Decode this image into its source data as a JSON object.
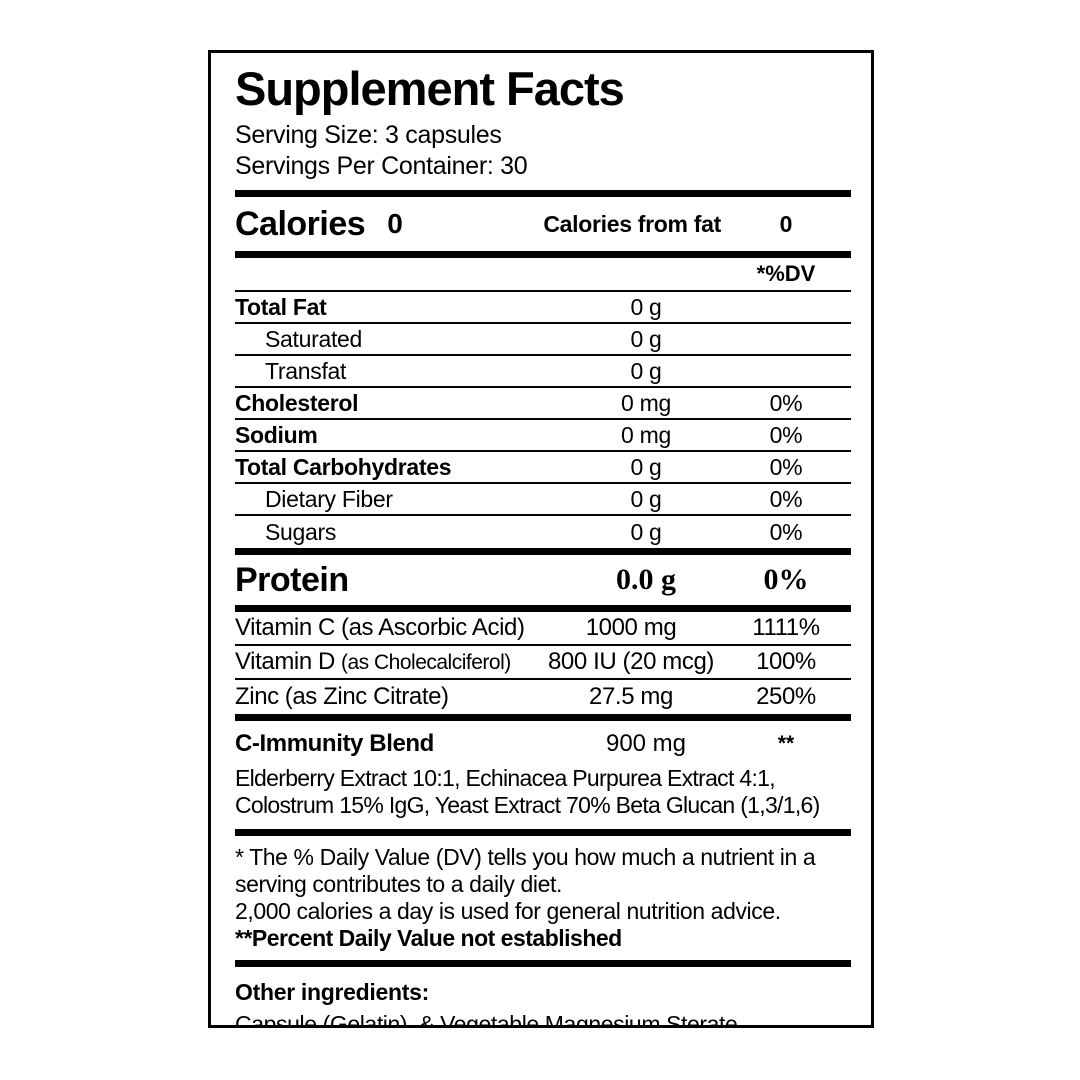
{
  "label": {
    "title": "Supplement Facts",
    "serving_size": "Serving Size: 3 capsules",
    "servings_per_container": "Servings Per Container: 30",
    "calories_label": "Calories",
    "calories_value": "0",
    "calories_from_fat_label": "Calories from fat",
    "calories_from_fat_value": "0",
    "dv_header": "*%DV",
    "nutrients": [
      {
        "name": "Total Fat",
        "amount": "0 g",
        "dv": ""
      },
      {
        "name": "Saturated",
        "amount": "0 g",
        "dv": ""
      },
      {
        "name": "Transfat",
        "amount": "0 g",
        "dv": ""
      },
      {
        "name": "Cholesterol",
        "amount": "0 mg",
        "dv": "0%"
      },
      {
        "name": "Sodium",
        "amount": "0 mg",
        "dv": "0%"
      },
      {
        "name": "Total Carbohydrates",
        "amount": "0 g",
        "dv": "0%"
      },
      {
        "name": "Dietary Fiber",
        "amount": "0 g",
        "dv": "0%"
      },
      {
        "name": "Sugars",
        "amount": "0 g",
        "dv": "0%"
      }
    ],
    "protein_label": "Protein",
    "protein_amount": "0.0 g",
    "protein_dv": "0%",
    "vitamins": [
      {
        "name": "Vitamin C",
        "form": "(as Ascorbic Acid)",
        "amount": "1000 mg",
        "dv": "1111%"
      },
      {
        "name": "Vitamin D",
        "form": "(as Cholecalciferol)",
        "amount": "800 IU (20 mcg)",
        "dv": "100%"
      },
      {
        "name": "Zinc",
        "form": "(as Zinc Citrate)",
        "amount": "27.5 mg",
        "dv": "250%"
      }
    ],
    "blend_name": "C-Immunity Blend",
    "blend_amount": "900 mg",
    "blend_dv": "**",
    "blend_description_line1": "Elderberry Extract 10:1, Echinacea Purpurea Extract 4:1,",
    "blend_description_line2": "Colostrum 15% IgG, Yeast Extract 70% Beta Glucan (1,3/1,6)",
    "footnote_line1": "* The % Daily Value (DV) tells you how much a nutrient in a",
    "footnote_line2": "serving contributes to a daily diet.",
    "footnote_line3": "2,000 calories a day is used for general nutrition advice.",
    "footnote_line4": "**Percent Daily Value not established",
    "other_ingredients_label": "Other ingredients:",
    "other_ingredients_value": "Capsule (Gelatin), & Vegetable Magnesium Sterate."
  }
}
